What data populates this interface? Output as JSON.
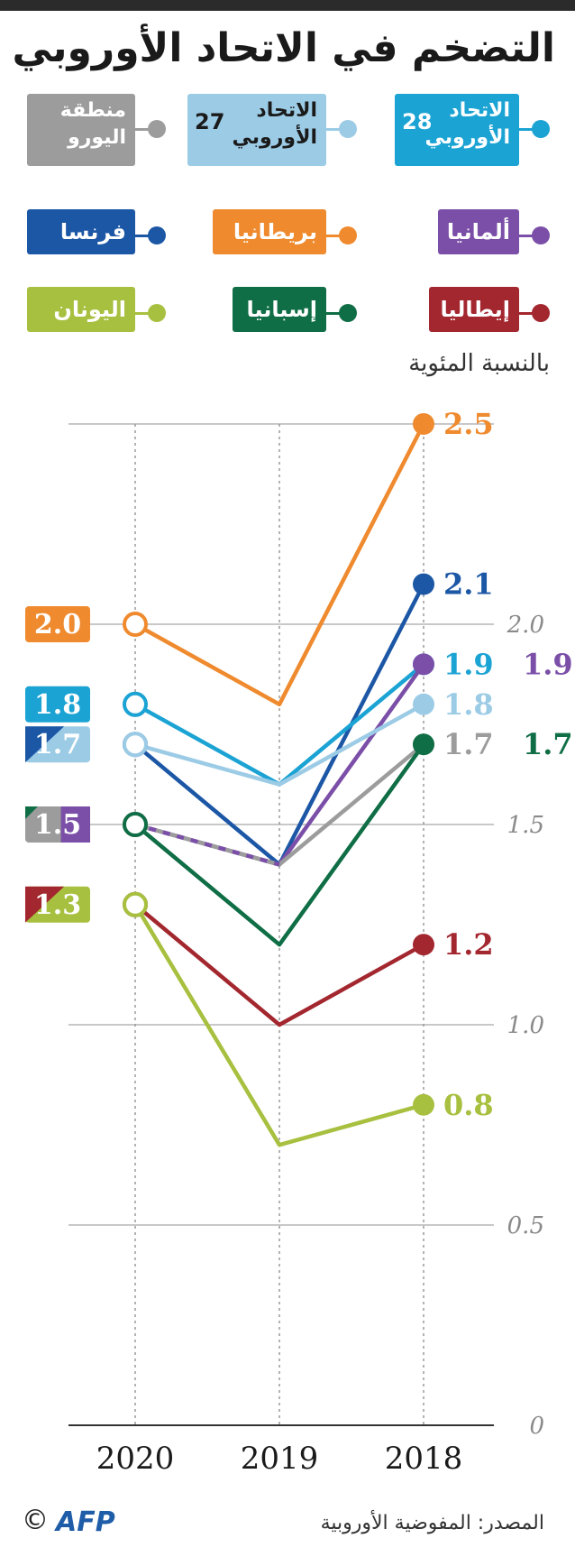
{
  "title": "التضخم في الاتحاد الأوروبي",
  "unit_label": "بالنسبة المئوية",
  "source": "المصدر: المفوضية الأوروبية",
  "logo": "AFP",
  "copyright": "©",
  "legend": [
    {
      "id": "eu28",
      "label_line1": "الاتحاد",
      "label_line2": "الأوروبي",
      "label_number": "28",
      "color": "#1ba3d4"
    },
    {
      "id": "eu27",
      "label_line1": "الاتحاد",
      "label_line2": "الأوروبي",
      "label_number": "27",
      "color": "#9ccbe6"
    },
    {
      "id": "euro",
      "label_line1": "منطقة",
      "label_line2": "اليورو",
      "label_number": "",
      "color": "#9c9c9c"
    },
    {
      "id": "germany",
      "label": "ألمانيا",
      "color": "#7b4fa8"
    },
    {
      "id": "uk",
      "label": "بريطانيا",
      "color": "#ef8a2e"
    },
    {
      "id": "france",
      "label": "فرنسا",
      "color": "#1c57a6"
    },
    {
      "id": "italy",
      "label": "إيطاليا",
      "color": "#a3272f"
    },
    {
      "id": "spain",
      "label": "إسبانيا",
      "color": "#0f6e45"
    },
    {
      "id": "greece",
      "label": "اليونان",
      "color": "#a7c03f"
    }
  ],
  "chart_data": {
    "type": "line",
    "x": [
      "2020",
      "2019",
      "2018"
    ],
    "y_ticks": [
      "0",
      "0.5",
      "1.0",
      "1.5",
      "2.0"
    ],
    "ylim": [
      0,
      2.5
    ],
    "grid": true,
    "series": [
      {
        "name": "بريطانيا",
        "color": "#ef8a2e",
        "values": [
          2.0,
          1.8,
          2.5
        ]
      },
      {
        "name": "فرنسا",
        "color": "#1c57a6",
        "values": [
          1.7,
          1.4,
          2.1
        ]
      },
      {
        "name": "الاتحاد الأوروبي 28",
        "color": "#1ba3d4",
        "values": [
          1.8,
          1.6,
          1.9
        ]
      },
      {
        "name": "ألمانيا",
        "color": "#7b4fa8",
        "values": [
          1.5,
          1.4,
          1.9
        ]
      },
      {
        "name": "الاتحاد الأوروبي 27",
        "color": "#9ccbe6",
        "values": [
          1.7,
          1.6,
          1.8
        ]
      },
      {
        "name": "منطقة اليورو",
        "color": "#9c9c9c",
        "values": [
          1.5,
          1.4,
          1.7
        ]
      },
      {
        "name": "إسبانيا",
        "color": "#0f6e45",
        "values": [
          1.5,
          1.2,
          1.7
        ]
      },
      {
        "name": "إيطاليا",
        "color": "#a3272f",
        "values": [
          1.3,
          1.0,
          1.2
        ]
      },
      {
        "name": "اليونان",
        "color": "#a7c03f",
        "values": [
          1.3,
          0.7,
          0.8
        ]
      }
    ],
    "labels_2018": [
      {
        "text": "2.5",
        "color": "#ef8a2e",
        "value": 2.5
      },
      {
        "text": "2.1",
        "color": "#1c57a6",
        "value": 2.1
      },
      {
        "text": "1.9",
        "color": "#1ba3d4",
        "value": 1.9
      },
      {
        "text": "1.9",
        "color": "#7b4fa8",
        "value": 1.9,
        "second": true
      },
      {
        "text": "1.8",
        "color": "#9ccbe6",
        "value": 1.8
      },
      {
        "text": "1.7",
        "color": "#9c9c9c",
        "value": 1.7
      },
      {
        "text": "1.7",
        "color": "#0f6e45",
        "value": 1.7,
        "second": true
      },
      {
        "text": "1.2",
        "color": "#a3272f",
        "value": 1.2
      },
      {
        "text": "0.8",
        "color": "#a7c03f",
        "value": 0.8
      }
    ],
    "labels_2020": [
      {
        "text": "2.0",
        "colors": [
          "#ef8a2e"
        ],
        "value": 2.0
      },
      {
        "text": "1.8",
        "colors": [
          "#1ba3d4"
        ],
        "value": 1.8
      },
      {
        "text": "1.7",
        "colors": [
          "#1c57a6",
          "#9ccbe6"
        ],
        "value": 1.7
      },
      {
        "text": "1.5",
        "colors": [
          "#0f6e45",
          "#9c9c9c",
          "#7b4fa8"
        ],
        "value": 1.5
      },
      {
        "text": "1.3",
        "colors": [
          "#a3272f",
          "#a7c03f"
        ],
        "value": 1.3
      }
    ]
  }
}
